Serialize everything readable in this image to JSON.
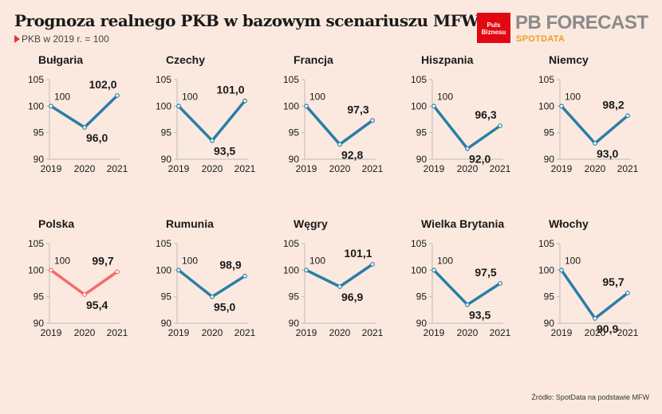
{
  "header": {
    "title": "Prognoza realnego PKB w bazowym scenariuszu MFW",
    "subtitle": "PKB w 2019 r. = 100"
  },
  "logo": {
    "box_line1": "Puls",
    "box_line2": "Biznesu",
    "main": "PB FORECAST",
    "sub": "SPOTDATA"
  },
  "source": "Źródło: SpotData na podstawie MFW",
  "colors": {
    "line": "#2a7ea6",
    "highlight": "#f26b6b",
    "background": "#fbe9df",
    "axis": "#bbbbbb",
    "text": "#1a1a1a"
  },
  "chart_data": [
    {
      "type": "line",
      "title": "Bułgaria",
      "categories": [
        "2019",
        "2020",
        "2021"
      ],
      "values": [
        100,
        96.0,
        102.0
      ],
      "labels": [
        "100",
        "96,0",
        "102,0"
      ],
      "ylim": [
        90,
        105
      ],
      "yticks": [
        "90",
        "95",
        "100",
        "105"
      ],
      "color": "#2a7ea6"
    },
    {
      "type": "line",
      "title": "Czechy",
      "categories": [
        "2019",
        "2020",
        "2021"
      ],
      "values": [
        100,
        93.5,
        101.0
      ],
      "labels": [
        "100",
        "93,5",
        "101,0"
      ],
      "ylim": [
        90,
        105
      ],
      "yticks": [
        "90",
        "95",
        "100",
        "105"
      ],
      "color": "#2a7ea6"
    },
    {
      "type": "line",
      "title": "Francja",
      "categories": [
        "2019",
        "2020",
        "2021"
      ],
      "values": [
        100,
        92.8,
        97.3
      ],
      "labels": [
        "100",
        "92,8",
        "97,3"
      ],
      "ylim": [
        90,
        105
      ],
      "yticks": [
        "90",
        "95",
        "100",
        "105"
      ],
      "color": "#2a7ea6"
    },
    {
      "type": "line",
      "title": "Hiszpania",
      "categories": [
        "2019",
        "2020",
        "2021"
      ],
      "values": [
        100,
        92.0,
        96.3
      ],
      "labels": [
        "100",
        "92,0",
        "96,3"
      ],
      "ylim": [
        90,
        105
      ],
      "yticks": [
        "90",
        "95",
        "100",
        "105"
      ],
      "color": "#2a7ea6"
    },
    {
      "type": "line",
      "title": "Niemcy",
      "categories": [
        "2019",
        "2020",
        "2021"
      ],
      "values": [
        100,
        93.0,
        98.2
      ],
      "labels": [
        "100",
        "93,0",
        "98,2"
      ],
      "ylim": [
        90,
        105
      ],
      "yticks": [
        "90",
        "95",
        "100",
        "105"
      ],
      "color": "#2a7ea6"
    },
    {
      "type": "line",
      "title": "Polska",
      "categories": [
        "2019",
        "2020",
        "2021"
      ],
      "values": [
        100,
        95.4,
        99.7
      ],
      "labels": [
        "100",
        "95,4",
        "99,7"
      ],
      "ylim": [
        90,
        105
      ],
      "yticks": [
        "90",
        "95",
        "100",
        "105"
      ],
      "color": "#f26b6b"
    },
    {
      "type": "line",
      "title": "Rumunia",
      "categories": [
        "2019",
        "2020",
        "2021"
      ],
      "values": [
        100,
        95.0,
        98.9
      ],
      "labels": [
        "100",
        "95,0",
        "98,9"
      ],
      "ylim": [
        90,
        105
      ],
      "yticks": [
        "90",
        "95",
        "100",
        "105"
      ],
      "color": "#2a7ea6"
    },
    {
      "type": "line",
      "title": "Węgry",
      "categories": [
        "2019",
        "2020",
        "2021"
      ],
      "values": [
        100,
        96.9,
        101.1
      ],
      "labels": [
        "100",
        "96,9",
        "101,1"
      ],
      "ylim": [
        90,
        105
      ],
      "yticks": [
        "90",
        "95",
        "100",
        "105"
      ],
      "color": "#2a7ea6"
    },
    {
      "type": "line",
      "title": "Wielka Brytania",
      "categories": [
        "2019",
        "2020",
        "2021"
      ],
      "values": [
        100,
        93.5,
        97.5
      ],
      "labels": [
        "100",
        "93,5",
        "97,5"
      ],
      "ylim": [
        90,
        105
      ],
      "yticks": [
        "90",
        "95",
        "100",
        "105"
      ],
      "color": "#2a7ea6"
    },
    {
      "type": "line",
      "title": "Włochy",
      "categories": [
        "2019",
        "2020",
        "2021"
      ],
      "values": [
        100,
        90.9,
        95.7
      ],
      "labels": [
        "100",
        "90,9",
        "95,7"
      ],
      "ylim": [
        90,
        105
      ],
      "yticks": [
        "90",
        "95",
        "100",
        "105"
      ],
      "color": "#2a7ea6"
    }
  ]
}
